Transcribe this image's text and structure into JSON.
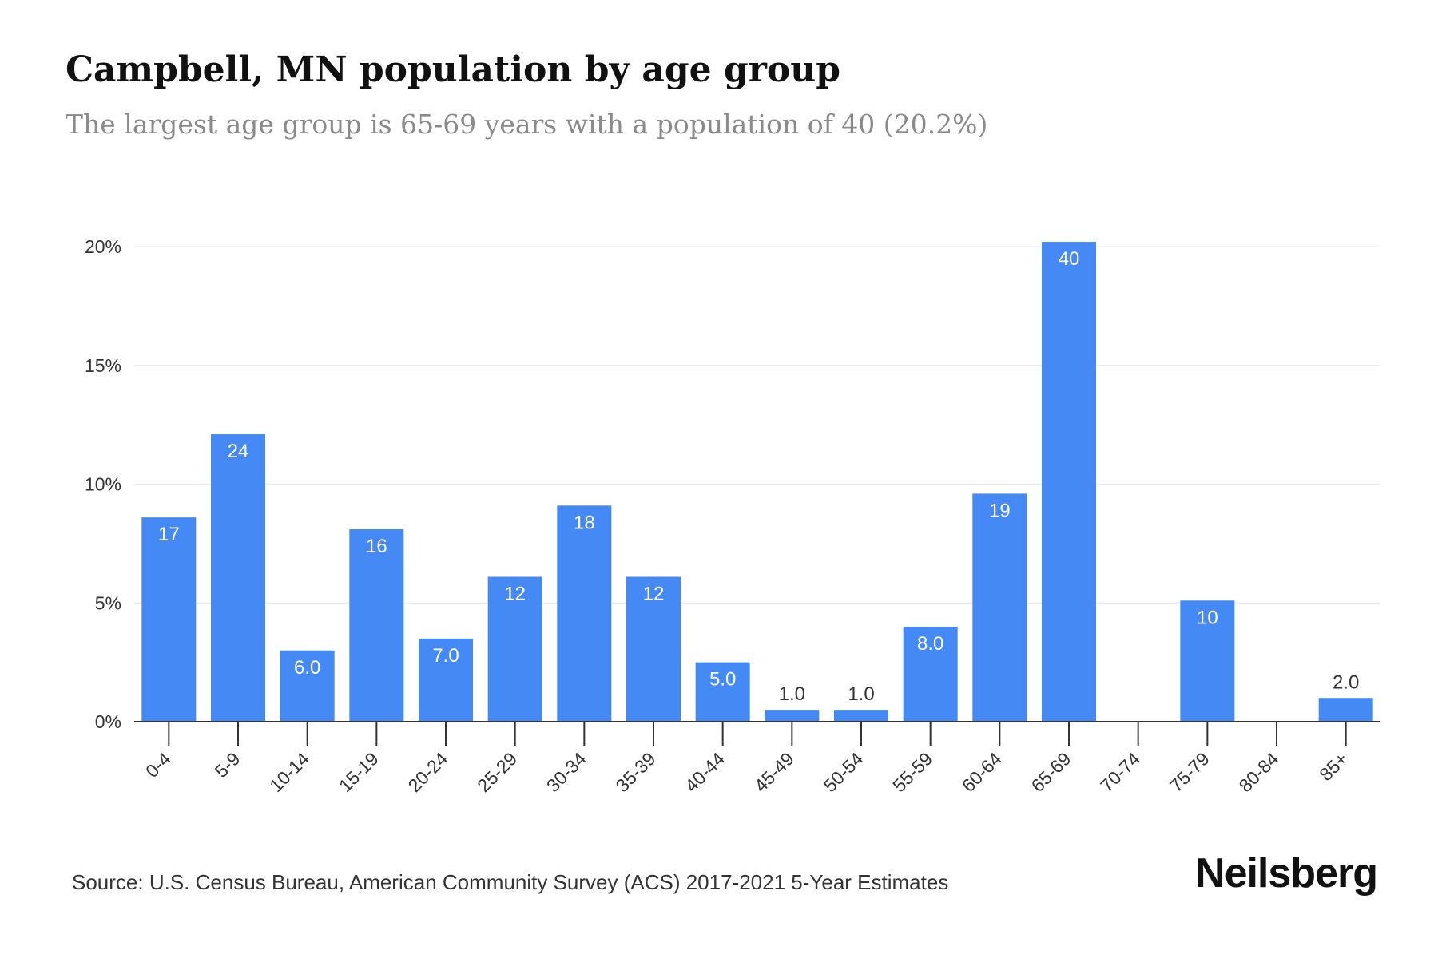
{
  "title": "Campbell, MN population by age group",
  "subtitle": "The largest age group is 65-69 years with a population of 40 (20.2%)",
  "source": "Source: U.S. Census Bureau, American Community Survey (ACS) 2017-2021 5-Year Estimates",
  "brand": "Neilsberg",
  "colors": {
    "bar": "#4589f5",
    "grid": "#eeeeee",
    "axis": "#333333",
    "tick_text": "#333333"
  },
  "chart_data": {
    "type": "bar",
    "categories": [
      "0-4",
      "5-9",
      "10-14",
      "15-19",
      "20-24",
      "25-29",
      "30-34",
      "35-39",
      "40-44",
      "45-49",
      "50-54",
      "55-59",
      "60-64",
      "65-69",
      "70-74",
      "75-79",
      "80-84",
      "85+"
    ],
    "percent": [
      8.6,
      12.1,
      3.0,
      8.1,
      3.5,
      6.1,
      9.1,
      6.1,
      2.5,
      0.5,
      0.5,
      4.0,
      9.6,
      20.2,
      0,
      5.1,
      0,
      1.0
    ],
    "labels": [
      "17",
      "24",
      "6.0",
      "16",
      "7.0",
      "12",
      "18",
      "12",
      "5.0",
      "1.0",
      "1.0",
      "8.0",
      "19",
      "40",
      "",
      "10",
      "",
      "2.0"
    ],
    "yticks": [
      0,
      5,
      10,
      15,
      20
    ],
    "ytick_labels": [
      "0%",
      "5%",
      "10%",
      "15%",
      "20%"
    ],
    "ylim": [
      0,
      20.2
    ],
    "grid": true
  }
}
